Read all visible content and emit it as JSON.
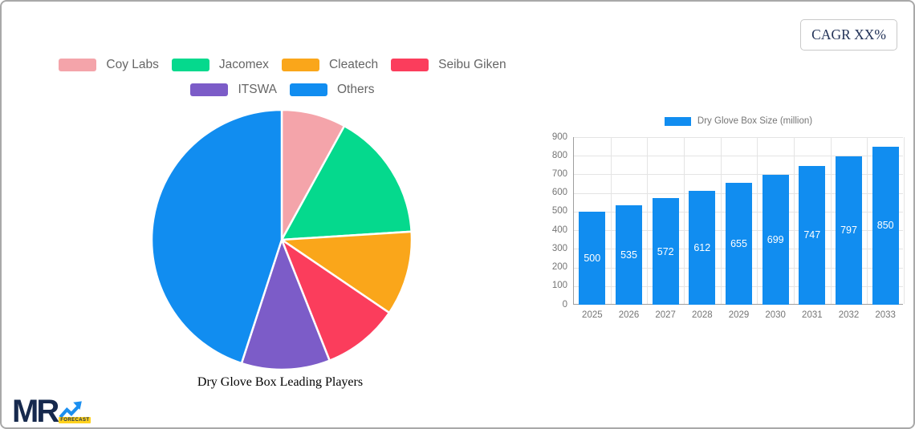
{
  "page": {
    "cagr_label": "CAGR XX%",
    "background_color": "#ffffff",
    "border_color": "#a8a8a8"
  },
  "logo": {
    "mr_text": "MR",
    "forecast_text": "FORECAST",
    "mr_color": "#16294d",
    "arrow_color": "#1b8ff0",
    "badge_color": "#ffd21e"
  },
  "chart_data": [
    {
      "type": "pie",
      "title": "Dry Glove Box Leading Players",
      "labels": [
        "Coy Labs",
        "Jacomex",
        "Cleatech",
        "Seibu Giken",
        "ITSWA",
        "Others"
      ],
      "values": [
        8,
        16,
        10.5,
        9.5,
        11,
        45
      ],
      "colors": [
        "#f4a4aa",
        "#05d98d",
        "#faa61a",
        "#fb3d5c",
        "#7c5cc8",
        "#118df0"
      ],
      "start_angle_deg": 0,
      "direction": "clockwise",
      "legend_position": "top",
      "slice_separator_color": "#ffffff"
    },
    {
      "type": "bar",
      "legend_label": "Dry Glove Box Size (million)",
      "categories": [
        "2025",
        "2026",
        "2027",
        "2028",
        "2029",
        "2030",
        "2031",
        "2032",
        "2033"
      ],
      "values": [
        500,
        535,
        572,
        612,
        655,
        699,
        747,
        797,
        850
      ],
      "ylim": [
        0,
        900
      ],
      "ytick_step": 100,
      "bar_color": "#118df0",
      "value_label_color": "#ffffff",
      "grid": true,
      "grid_color": "#e4e4e4",
      "axis_color": "#9e9e9e",
      "tick_text_color": "#757575",
      "legend_position": "top"
    }
  ]
}
